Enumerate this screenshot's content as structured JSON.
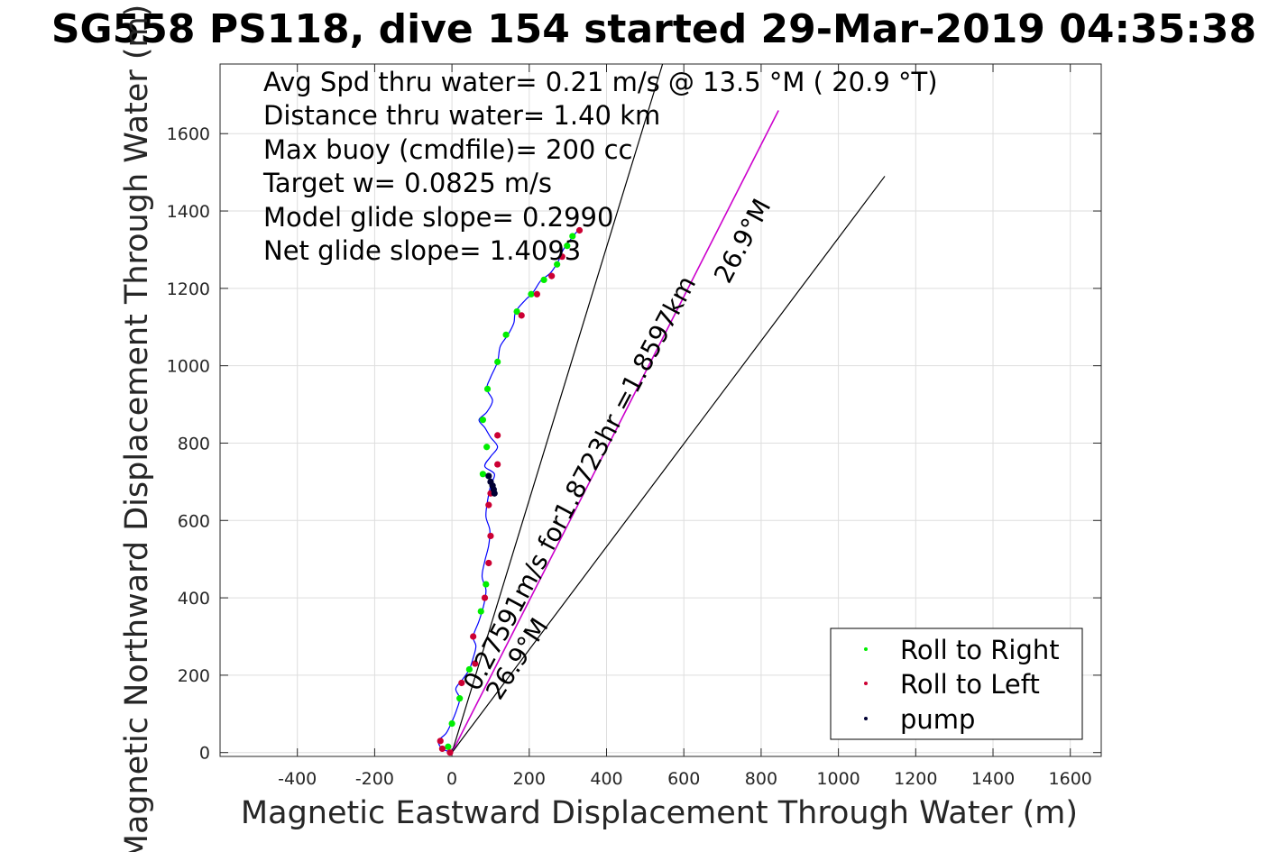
{
  "chart_data": {
    "type": "scatter",
    "title": "SG558 PS118, dive 154 started 29-Mar-2019 04:35:38",
    "xlabel": "Magnetic Eastward Displacement Through Water (m)",
    "ylabel": "Magnetic Northward Displacement Through Water (m)",
    "xlim": [
      -600,
      1680
    ],
    "ylim": [
      -10,
      1780
    ],
    "xticks": [
      -400,
      -200,
      0,
      200,
      400,
      600,
      800,
      1000,
      1200,
      1400,
      1600
    ],
    "yticks": [
      0,
      200,
      400,
      600,
      800,
      1000,
      1200,
      1400,
      1600
    ],
    "grid": true,
    "legend_position": "bottom-right",
    "annotations": [
      "Avg Spd thru water=  0.21 m/s @  13.5 °M ( 20.9 °T)",
      "Distance thru water=  1.40 km",
      "Max buoy (cmdfile)= 200 cc",
      "Target w= 0.0825 m/s",
      "Model glide slope= 0.2990",
      "Net glide slope= 1.4093"
    ],
    "line_labels": {
      "main": "0.27591m/s for1.8723hr =1.8597km",
      "heading_upper": "26.9°M",
      "heading_lower": "26.9°M"
    },
    "reference_lines": [
      {
        "name": "upper-bound",
        "color": "#000000",
        "from": [
          0,
          0
        ],
        "to": [
          545,
          1780
        ]
      },
      {
        "name": "heading",
        "color": "#cc00cc",
        "from": [
          0,
          0
        ],
        "to": [
          845,
          1660
        ]
      },
      {
        "name": "lower-bound",
        "color": "#000000",
        "from": [
          0,
          0
        ],
        "to": [
          1120,
          1490
        ]
      }
    ],
    "track": [
      [
        0,
        0
      ],
      [
        -25,
        10
      ],
      [
        -35,
        30
      ],
      [
        -15,
        50
      ],
      [
        0,
        80
      ],
      [
        12,
        110
      ],
      [
        20,
        140
      ],
      [
        10,
        165
      ],
      [
        28,
        190
      ],
      [
        45,
        215
      ],
      [
        55,
        245
      ],
      [
        62,
        275
      ],
      [
        55,
        300
      ],
      [
        70,
        340
      ],
      [
        82,
        380
      ],
      [
        88,
        420
      ],
      [
        78,
        455
      ],
      [
        85,
        495
      ],
      [
        95,
        535
      ],
      [
        98,
        575
      ],
      [
        88,
        610
      ],
      [
        92,
        650
      ],
      [
        100,
        690
      ],
      [
        110,
        720
      ],
      [
        85,
        740
      ],
      [
        100,
        765
      ],
      [
        118,
        790
      ],
      [
        100,
        815
      ],
      [
        85,
        840
      ],
      [
        70,
        860
      ],
      [
        90,
        880
      ],
      [
        105,
        910
      ],
      [
        90,
        940
      ],
      [
        100,
        970
      ],
      [
        118,
        1010
      ],
      [
        125,
        1050
      ],
      [
        145,
        1080
      ],
      [
        160,
        1110
      ],
      [
        165,
        1140
      ],
      [
        190,
        1170
      ],
      [
        210,
        1190
      ],
      [
        230,
        1220
      ],
      [
        255,
        1240
      ],
      [
        275,
        1270
      ],
      [
        288,
        1300
      ],
      [
        310,
        1330
      ],
      [
        330,
        1355
      ]
    ],
    "series": [
      {
        "name": "Roll to Right",
        "color": "#00ee00",
        "points": [
          [
            -10,
            15
          ],
          [
            0,
            75
          ],
          [
            20,
            140
          ],
          [
            45,
            215
          ],
          [
            75,
            365
          ],
          [
            88,
            435
          ],
          [
            80,
            720
          ],
          [
            90,
            790
          ],
          [
            80,
            860
          ],
          [
            92,
            940
          ],
          [
            118,
            1010
          ],
          [
            140,
            1080
          ],
          [
            168,
            1140
          ],
          [
            205,
            1185
          ],
          [
            238,
            1222
          ],
          [
            272,
            1262
          ],
          [
            298,
            1310
          ],
          [
            312,
            1335
          ]
        ]
      },
      {
        "name": "Roll to Left",
        "color": "#cc0033",
        "points": [
          [
            -25,
            10
          ],
          [
            -30,
            30
          ],
          [
            -5,
            0
          ],
          [
            25,
            180
          ],
          [
            60,
            230
          ],
          [
            55,
            300
          ],
          [
            85,
            400
          ],
          [
            95,
            490
          ],
          [
            100,
            560
          ],
          [
            95,
            640
          ],
          [
            100,
            670
          ],
          [
            118,
            745
          ],
          [
            118,
            820
          ],
          [
            180,
            1130
          ],
          [
            220,
            1185
          ],
          [
            258,
            1232
          ],
          [
            285,
            1282
          ],
          [
            330,
            1350
          ]
        ]
      },
      {
        "name": "pump",
        "color": "#000033",
        "points": [
          [
            95,
            715
          ],
          [
            100,
            700
          ],
          [
            105,
            690
          ],
          [
            108,
            680
          ],
          [
            110,
            670
          ]
        ]
      }
    ]
  }
}
